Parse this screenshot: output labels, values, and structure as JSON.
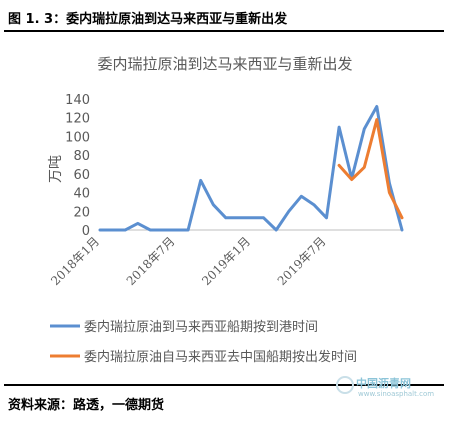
{
  "figure": {
    "label": "图 1. 3：委内瑞拉原油到达马来西亚与重新出发",
    "source": "资料来源：路透，一德期货"
  },
  "watermark": {
    "brand": "中国沥青网",
    "url": "www.sinoasphalt.com"
  },
  "chart_data": {
    "type": "line",
    "title": "委内瑞拉原油到达马来西亚与重新出发",
    "ylabel": "万吨",
    "xlabel": "",
    "ylim": [
      0,
      140
    ],
    "yticks": [
      0,
      20,
      40,
      60,
      80,
      100,
      120,
      140
    ],
    "x_tick_labels": [
      "2018年1月",
      "2018年7月",
      "2019年1月",
      "2019年7月"
    ],
    "x_tick_index": [
      0,
      6,
      12,
      18
    ],
    "n_periods": 25,
    "legend_position": "bottom",
    "grid": false,
    "series": [
      {
        "name": "委内瑞拉原油到马来西亚船期按到港时间",
        "color": "#5b8fd0",
        "x_index": [
          0,
          1,
          2,
          3,
          4,
          5,
          6,
          7,
          8,
          9,
          10,
          11,
          12,
          13,
          14,
          15,
          16,
          17,
          18,
          19,
          20,
          21,
          22,
          23,
          24
        ],
        "values": [
          0,
          0,
          0,
          7,
          0,
          0,
          0,
          0,
          53,
          27,
          13,
          13,
          13,
          13,
          0,
          20,
          36,
          27,
          13,
          110,
          55,
          108,
          132,
          50,
          0
        ]
      },
      {
        "name": "委内瑞拉原油自马来西亚去中国船期按出发时间",
        "color": "#ed7d31",
        "x_index": [
          19,
          20,
          21,
          22,
          23,
          24
        ],
        "values": [
          69,
          54,
          67,
          118,
          40,
          13
        ]
      }
    ]
  }
}
